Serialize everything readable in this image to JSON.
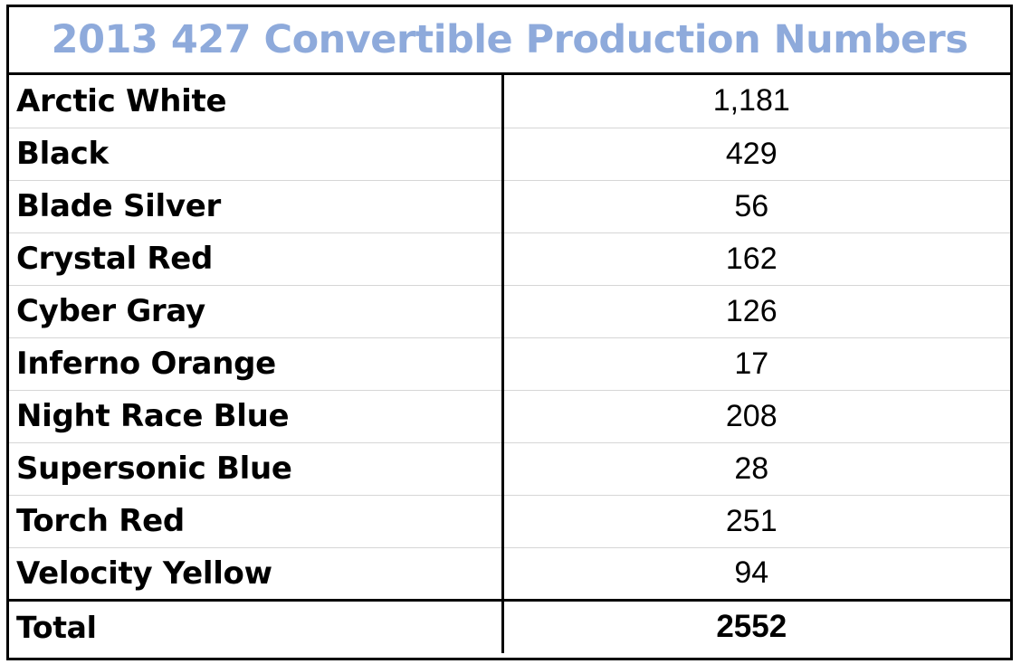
{
  "title": {
    "text": "2013 427 Convertible Production Numbers",
    "color": "#8eaadb"
  },
  "rows": [
    {
      "color_name": "Arctic White",
      "count": "1,181"
    },
    {
      "color_name": "Black",
      "count": "429"
    },
    {
      "color_name": "Blade Silver",
      "count": "56"
    },
    {
      "color_name": "Crystal Red",
      "count": "162"
    },
    {
      "color_name": "Cyber Gray",
      "count": "126"
    },
    {
      "color_name": "Inferno Orange",
      "count": "17"
    },
    {
      "color_name": "Night Race Blue",
      "count": "208"
    },
    {
      "color_name": "Supersonic Blue",
      "count": "28"
    },
    {
      "color_name": "Torch Red",
      "count": "251"
    },
    {
      "color_name": "Velocity Yellow",
      "count": "94"
    }
  ],
  "total": {
    "label": "Total",
    "count": "2552"
  }
}
